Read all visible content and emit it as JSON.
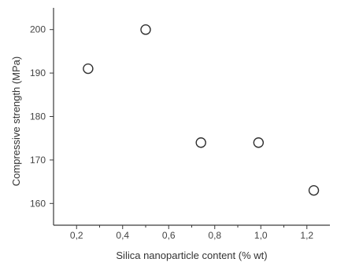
{
  "chart_data": {
    "type": "scatter",
    "xlabel": "Silica nanoparticle content (% wt)",
    "ylabel": "Compressive strength (MPa)",
    "x_ticks": [
      "0,2",
      "0,4",
      "0,6",
      "0,8",
      "1,0",
      "1,2"
    ],
    "y_ticks": [
      "160",
      "170",
      "180",
      "190",
      "200"
    ],
    "xlim": [
      0.1,
      1.3
    ],
    "ylim": [
      155,
      205
    ],
    "grid": false,
    "points": [
      {
        "x": 0.25,
        "y": 191
      },
      {
        "x": 0.5,
        "y": 200
      },
      {
        "x": 0.74,
        "y": 174
      },
      {
        "x": 0.99,
        "y": 174
      },
      {
        "x": 1.23,
        "y": 163
      }
    ]
  }
}
